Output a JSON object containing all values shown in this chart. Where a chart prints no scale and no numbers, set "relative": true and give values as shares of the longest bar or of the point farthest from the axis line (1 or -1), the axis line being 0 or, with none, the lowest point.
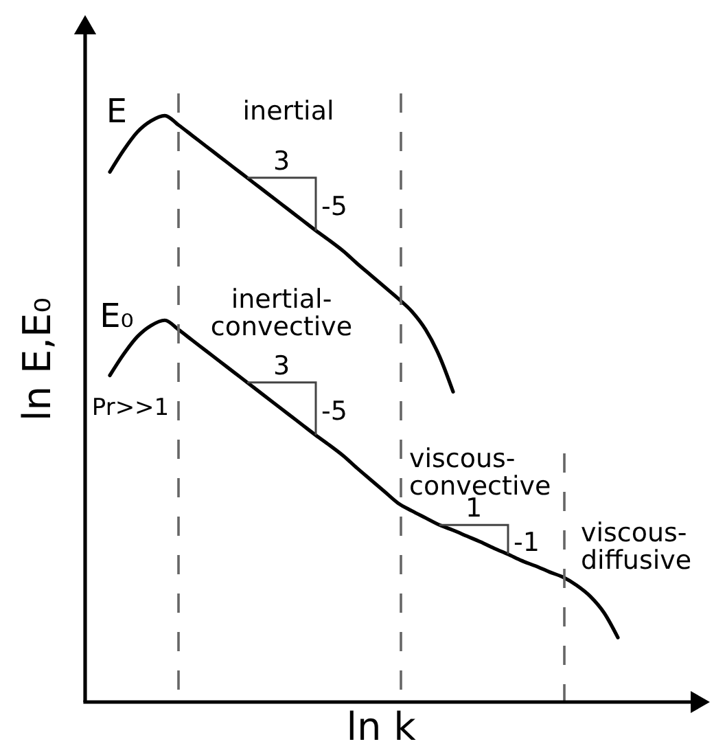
{
  "chart_data": {
    "type": "line",
    "relative": true,
    "xlabel": "ln k",
    "ylabel": "ln E,E₀",
    "categories": [
      null,
      null,
      null,
      null,
      null,
      null,
      null,
      null,
      null,
      null,
      null,
      null,
      null,
      null,
      null,
      null,
      null,
      null,
      null,
      null,
      null,
      null,
      null,
      null,
      null,
      null,
      null,
      null,
      null,
      null,
      null,
      null,
      null,
      null,
      null,
      null,
      null,
      null
    ],
    "series": [
      {
        "name": "E",
        "color": "#000000",
        "values": [
          0.904,
          0.941,
          0.972,
          0.991,
          1.0,
          0.984,
          0.966,
          0.948,
          0.93,
          0.912,
          0.894,
          0.876,
          0.858,
          0.84,
          0.822,
          0.804,
          0.787,
          0.769,
          0.748,
          0.728,
          0.708,
          0.688,
          0.666,
          0.635,
          0.59,
          0.529,
          null,
          null,
          null,
          null,
          null,
          null,
          null,
          null,
          null,
          null,
          null,
          null
        ]
      },
      {
        "name": "E₀",
        "color": "#000000",
        "values": [
          0.557,
          0.593,
          0.623,
          0.642,
          0.651,
          0.635,
          0.617,
          0.599,
          0.581,
          0.563,
          0.545,
          0.527,
          0.509,
          0.491,
          0.473,
          0.455,
          0.438,
          0.42,
          0.399,
          0.379,
          0.359,
          0.339,
          0.326,
          0.314,
          0.302,
          0.293,
          0.283,
          0.273,
          0.262,
          0.252,
          0.241,
          0.232,
          0.222,
          0.213,
          0.199,
          0.18,
          0.152,
          0.11
        ]
      }
    ],
    "annotations": [
      "inertial",
      "inertial-\nconvective",
      "viscous-\nconvective",
      "viscous-\ndiffusive",
      "Pr>>1",
      "3",
      "-5",
      "3",
      "-5",
      "1",
      "-1"
    ]
  }
}
